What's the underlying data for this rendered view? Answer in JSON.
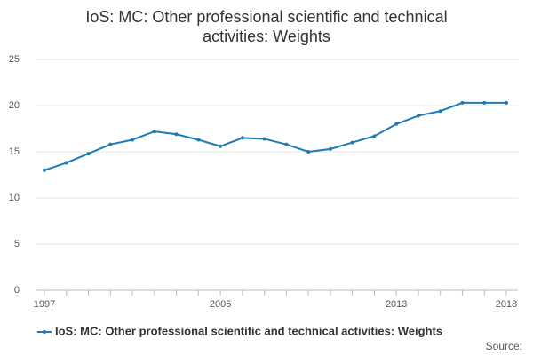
{
  "chart_data": {
    "type": "line",
    "title": "IoS: MC: Other professional scientific and technical activities: Weights",
    "x": [
      1997,
      1998,
      1999,
      2000,
      2001,
      2002,
      2003,
      2004,
      2005,
      2006,
      2007,
      2008,
      2009,
      2010,
      2011,
      2012,
      2013,
      2014,
      2015,
      2016,
      2017,
      2018
    ],
    "series": [
      {
        "name": "IoS: MC: Other professional scientific and technical activities: Weights",
        "color": "#1f7bb6",
        "values": [
          13.0,
          13.8,
          14.8,
          15.8,
          16.3,
          17.2,
          16.9,
          16.3,
          15.6,
          16.5,
          16.4,
          15.8,
          15.0,
          15.3,
          16.0,
          16.7,
          18.0,
          18.9,
          19.4,
          20.3,
          20.3,
          20.3
        ]
      }
    ],
    "xlim": [
      1997,
      2018
    ],
    "xticks": [
      1997,
      2005,
      2013,
      2018
    ],
    "ylim": [
      0,
      25
    ],
    "yticks": [
      0,
      5,
      10,
      15,
      20,
      25
    ],
    "grid": true,
    "source": "Source:"
  }
}
